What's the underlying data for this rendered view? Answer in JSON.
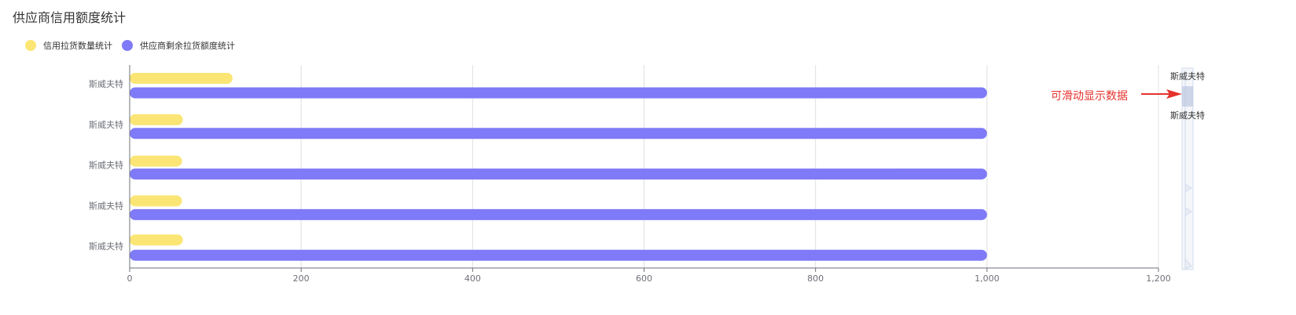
{
  "chart_data": {
    "type": "bar",
    "orientation": "horizontal",
    "title": "供应商信用额度统计",
    "categories": [
      "斯威夫特",
      "斯威夫特",
      "斯威夫特",
      "斯威夫特",
      "斯威夫特"
    ],
    "series": [
      {
        "name": "信用拉货数量统计",
        "color": "#fbe574",
        "values": [
          120,
          62,
          61,
          61,
          62
        ]
      },
      {
        "name": "供应商剩余拉货额度统计",
        "color": "#7f7af7",
        "values": [
          1000,
          1000,
          1000,
          1000,
          1000
        ]
      }
    ],
    "xlim": [
      0,
      1200
    ],
    "xticks": [
      0,
      200,
      400,
      600,
      800,
      1000,
      1200
    ],
    "xtick_labels": [
      "0",
      "200",
      "400",
      "600",
      "800",
      "1,000",
      "1,200"
    ],
    "grid": "vertical",
    "legend_position": "top-left"
  },
  "slider": {
    "top_label": "斯威夫特",
    "bottom_label": "斯威夫特"
  },
  "annotation": {
    "text": "可滑动显示数据",
    "color": "#e5322d"
  }
}
